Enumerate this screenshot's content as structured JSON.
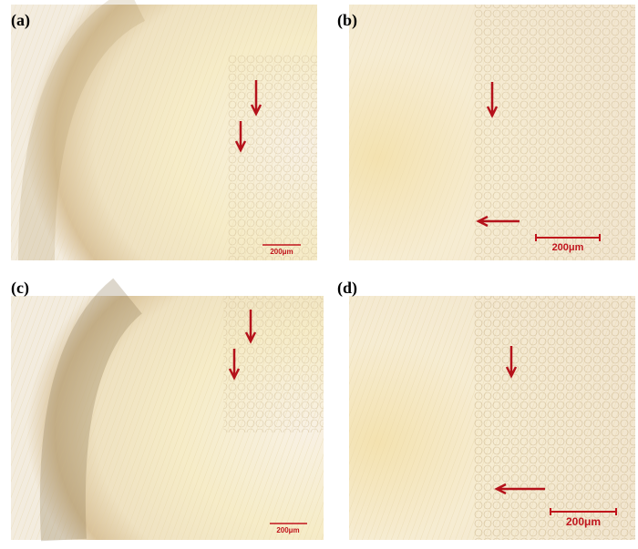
{
  "panels": [
    {
      "label": "(a)",
      "scale_bar": "200μm"
    },
    {
      "label": "(b)",
      "scale_bar": "200μm"
    },
    {
      "label": "(c)",
      "scale_bar": "200μm"
    },
    {
      "label": "(d)",
      "scale_bar": "200μm"
    }
  ]
}
